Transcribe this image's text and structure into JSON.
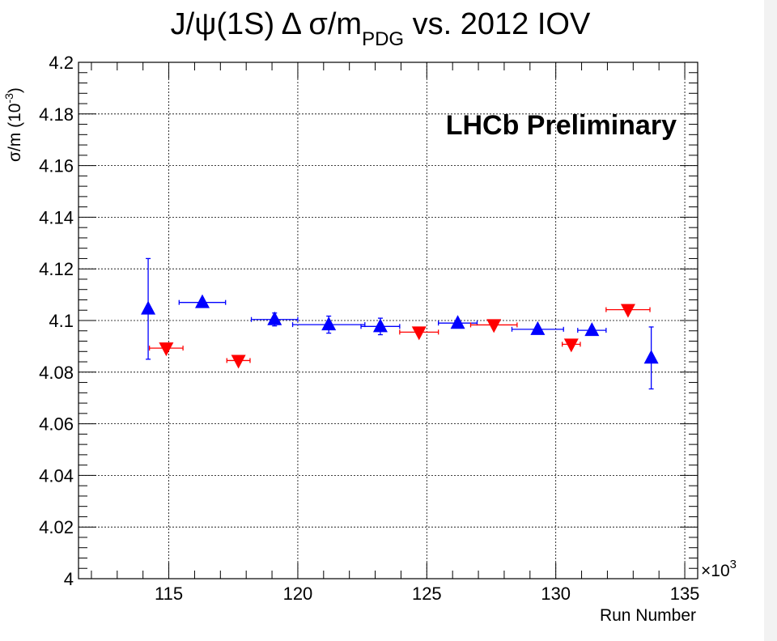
{
  "chart_data": {
    "type": "scatter",
    "title": {
      "main": "J/ψ(1S) Δ σ/m",
      "sub": "PDG",
      "suffix": " vs. 2012 IOV"
    },
    "xlabel": "Run Number",
    "ylabel": "σ/m (10",
    "ylabel_exp": "-3",
    "ylabel_close": ")",
    "x_multiplier": "×10",
    "x_multiplier_exp": "3",
    "annotation": "LHCb Preliminary",
    "xlim": [
      111.5,
      135.5
    ],
    "ylim": [
      4.0,
      4.2
    ],
    "x_ticks": [
      {
        "value": 115,
        "label": "115"
      },
      {
        "value": 120,
        "label": "120"
      },
      {
        "value": 125,
        "label": "125"
      },
      {
        "value": 130,
        "label": "130"
      },
      {
        "value": 135,
        "label": "135"
      }
    ],
    "y_ticks": [
      {
        "value": 4.0,
        "label": "4"
      },
      {
        "value": 4.02,
        "label": "4.02"
      },
      {
        "value": 4.04,
        "label": "4.04"
      },
      {
        "value": 4.06,
        "label": "4.06"
      },
      {
        "value": 4.08,
        "label": "4.08"
      },
      {
        "value": 4.1,
        "label": "4.1"
      },
      {
        "value": 4.12,
        "label": "4.12"
      },
      {
        "value": 4.14,
        "label": "4.14"
      },
      {
        "value": 4.16,
        "label": "4.16"
      },
      {
        "value": 4.18,
        "label": "4.18"
      },
      {
        "value": 4.2,
        "label": "4.2"
      }
    ],
    "grid": true,
    "series": [
      {
        "marker": "triangle-up",
        "color": "#0000ff",
        "points": [
          {
            "x": 114.2,
            "y": 4.1045,
            "xerr": 0.05,
            "yerr": 0.0195
          },
          {
            "x": 116.3,
            "y": 4.107,
            "xerr": 0.9,
            "yerr": 0.0005
          },
          {
            "x": 119.1,
            "y": 4.1004,
            "xerr": 0.9,
            "yerr": 0.0025
          },
          {
            "x": 121.2,
            "y": 4.0984,
            "xerr": 1.4,
            "yerr": 0.0033
          },
          {
            "x": 123.2,
            "y": 4.0977,
            "xerr": 0.75,
            "yerr": 0.0032
          },
          {
            "x": 126.2,
            "y": 4.099,
            "xerr": 0.75,
            "yerr": 0.0005
          },
          {
            "x": 129.3,
            "y": 4.0966,
            "xerr": 1.0,
            "yerr": 0.0005
          },
          {
            "x": 131.4,
            "y": 4.0962,
            "xerr": 0.55,
            "yerr": 0.0005
          },
          {
            "x": 133.7,
            "y": 4.0855,
            "xerr": 0.05,
            "yerr": 0.012
          }
        ]
      },
      {
        "marker": "triangle-down",
        "color": "#ff0000",
        "points": [
          {
            "x": 114.9,
            "y": 4.0893,
            "xerr": 0.65,
            "yerr": 0.0005
          },
          {
            "x": 117.7,
            "y": 4.0845,
            "xerr": 0.45,
            "yerr": 0.0005
          },
          {
            "x": 124.7,
            "y": 4.0955,
            "xerr": 0.75,
            "yerr": 0.0005
          },
          {
            "x": 127.6,
            "y": 4.0983,
            "xerr": 0.9,
            "yerr": 0.0005
          },
          {
            "x": 130.6,
            "y": 4.0908,
            "xerr": 0.35,
            "yerr": 0.0005
          },
          {
            "x": 132.8,
            "y": 4.1042,
            "xerr": 0.85,
            "yerr": 0.0005
          }
        ]
      }
    ]
  }
}
